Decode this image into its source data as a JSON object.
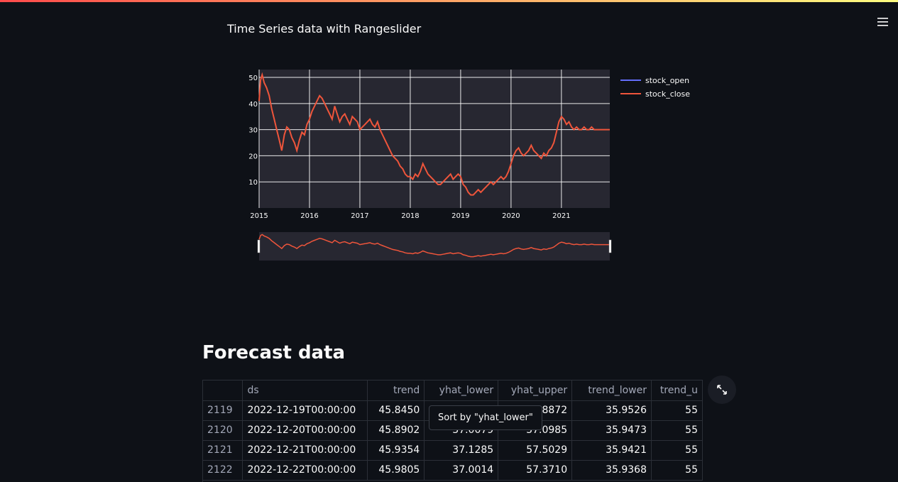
{
  "app": {
    "menu_icon": "hamburger-icon"
  },
  "chart_title": "Time Series data with Rangeslider",
  "chart_data": {
    "type": "line",
    "title": "Time Series data with Rangeslider",
    "x_ticks": [
      "2015",
      "2016",
      "2017",
      "2018",
      "2019",
      "2020",
      "2021"
    ],
    "y_ticks": [
      10,
      20,
      30,
      40,
      50
    ],
    "ylim": [
      0,
      53
    ],
    "xlim": [
      2015.0,
      2021.96
    ],
    "legend_position": "right",
    "rangeslider": true,
    "series": [
      {
        "name": "stock_open",
        "color": "#636efa",
        "x": [],
        "y": []
      },
      {
        "name": "stock_close",
        "color": "#ef553b",
        "x": [
          2015.0,
          2015.03,
          2015.06,
          2015.1,
          2015.15,
          2015.2,
          2015.25,
          2015.3,
          2015.35,
          2015.4,
          2015.45,
          2015.5,
          2015.55,
          2015.6,
          2015.65,
          2015.7,
          2015.75,
          2015.8,
          2015.85,
          2015.9,
          2015.95,
          2016.0,
          2016.05,
          2016.1,
          2016.15,
          2016.2,
          2016.25,
          2016.3,
          2016.35,
          2016.4,
          2016.45,
          2016.5,
          2016.55,
          2016.6,
          2016.65,
          2016.7,
          2016.75,
          2016.8,
          2016.85,
          2016.9,
          2016.95,
          2017.0,
          2017.05,
          2017.1,
          2017.15,
          2017.2,
          2017.25,
          2017.3,
          2017.35,
          2017.4,
          2017.45,
          2017.5,
          2017.55,
          2017.6,
          2017.65,
          2017.7,
          2017.75,
          2017.8,
          2017.85,
          2017.9,
          2017.95,
          2018.0,
          2018.05,
          2018.1,
          2018.15,
          2018.2,
          2018.25,
          2018.3,
          2018.35,
          2018.4,
          2018.45,
          2018.5,
          2018.55,
          2018.6,
          2018.65,
          2018.7,
          2018.75,
          2018.8,
          2018.85,
          2018.9,
          2018.95,
          2019.0,
          2019.05,
          2019.1,
          2019.15,
          2019.2,
          2019.25,
          2019.3,
          2019.35,
          2019.4,
          2019.45,
          2019.5,
          2019.55,
          2019.6,
          2019.65,
          2019.7,
          2019.75,
          2019.8,
          2019.85,
          2019.9,
          2019.95,
          2020.0,
          2020.05,
          2020.1,
          2020.15,
          2020.2,
          2020.25,
          2020.3,
          2020.35,
          2020.4,
          2020.45,
          2020.5,
          2020.55,
          2020.6,
          2020.65,
          2020.7,
          2020.75,
          2020.8,
          2020.85,
          2020.9,
          2020.95,
          2021.0,
          2021.05,
          2021.1,
          2021.15,
          2021.2,
          2021.25,
          2021.3,
          2021.35,
          2021.4,
          2021.45,
          2021.5,
          2021.55,
          2021.6,
          2021.65,
          2021.7,
          2021.75,
          2021.8,
          2021.85,
          2021.9,
          2021.96
        ],
        "y": [
          41,
          49,
          51,
          48,
          46,
          43,
          38,
          34,
          30,
          26,
          22,
          28,
          31,
          30,
          27,
          25,
          22,
          26,
          29,
          28,
          32,
          34,
          37,
          39,
          41,
          43,
          42,
          40,
          38,
          36,
          34,
          39,
          36,
          33,
          35,
          36,
          34,
          32,
          35,
          34,
          33,
          30,
          31,
          32,
          33,
          34,
          32,
          31,
          33,
          30,
          28,
          26,
          24,
          22,
          20,
          19,
          18,
          16,
          15,
          13,
          12,
          12,
          11,
          13,
          12,
          14,
          17,
          15,
          13,
          12,
          11,
          10,
          9,
          9,
          10,
          11,
          12,
          13,
          11,
          12,
          13,
          12,
          9,
          8,
          6,
          5,
          5,
          6,
          7,
          6,
          7,
          8,
          9,
          10,
          9,
          10,
          11,
          12,
          11,
          12,
          14,
          17,
          20,
          22,
          23,
          21,
          20,
          21,
          22,
          24,
          22,
          21,
          20,
          19,
          21,
          20,
          22,
          23,
          25,
          29,
          33,
          35,
          34,
          32,
          33,
          31,
          30,
          31,
          30,
          30,
          31,
          30,
          30,
          31,
          30,
          30,
          30,
          30,
          30,
          30,
          30
        ]
      }
    ]
  },
  "forecast": {
    "title": "Forecast data",
    "columns": [
      "",
      "ds",
      "trend",
      "yhat_lower",
      "yhat_upper",
      "trend_lower",
      "trend_u"
    ],
    "rows": [
      [
        "2119",
        "2022-12-19T00:00:00",
        "45.8450",
        "",
        "56.8872",
        "35.9526",
        "55"
      ],
      [
        "2120",
        "2022-12-20T00:00:00",
        "45.8902",
        "37.0079",
        "57.0985",
        "35.9473",
        "55"
      ],
      [
        "2121",
        "2022-12-21T00:00:00",
        "45.9354",
        "37.1285",
        "57.5029",
        "35.9421",
        "55"
      ],
      [
        "2122",
        "2022-12-22T00:00:00",
        "45.9805",
        "37.0014",
        "57.3710",
        "35.9368",
        "55"
      ]
    ],
    "tooltip": "Sort by \"yhat_lower\"",
    "expand_icon": "expand-icon"
  }
}
